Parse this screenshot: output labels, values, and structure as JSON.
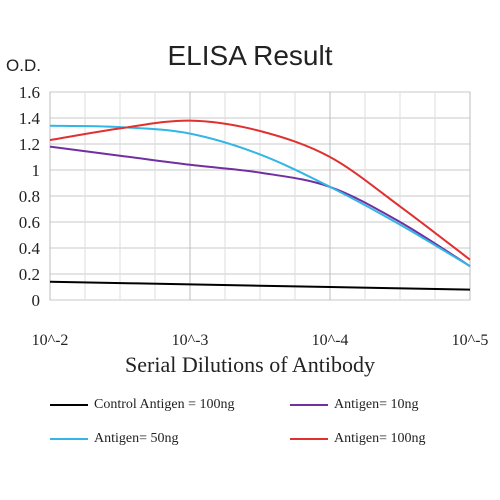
{
  "chart_data": {
    "type": "line",
    "title": "ELISA Result",
    "ylabel": "O.D.",
    "xlabel": "Serial Dilutions of Antibody",
    "x_ticks": [
      "10^-2",
      "10^-3",
      "10^-4",
      "10^-5"
    ],
    "y_ticks": [
      "0",
      "0.2",
      "0.4",
      "0.6",
      "0.8",
      "1",
      "1.2",
      "1.4",
      "1.6"
    ],
    "ylim": [
      0,
      1.6
    ],
    "xlim": [
      0,
      3
    ],
    "x_scale": "log (dilution exponent)",
    "grid": true,
    "legend_position": "bottom",
    "series": [
      {
        "name": "Control Antigen = 100ng",
        "color": "#000000",
        "points": [
          [
            0,
            0.14
          ],
          [
            1,
            0.12
          ],
          [
            2,
            0.1
          ],
          [
            3,
            0.08
          ]
        ]
      },
      {
        "name": "Antigen= 10ng",
        "color": "#7030a0",
        "points": [
          [
            0,
            1.18
          ],
          [
            0.5,
            1.11
          ],
          [
            1,
            1.04
          ],
          [
            1.5,
            0.98
          ],
          [
            2,
            0.87
          ],
          [
            2.5,
            0.6
          ],
          [
            3,
            0.26
          ]
        ]
      },
      {
        "name": "Antigen= 50ng",
        "color": "#33b5e5",
        "points": [
          [
            0,
            1.34
          ],
          [
            0.5,
            1.33
          ],
          [
            1,
            1.28
          ],
          [
            1.5,
            1.12
          ],
          [
            2,
            0.87
          ],
          [
            2.5,
            0.58
          ],
          [
            3,
            0.26
          ]
        ]
      },
      {
        "name": "Antigen= 100ng",
        "color": "#e03030",
        "points": [
          [
            0,
            1.23
          ],
          [
            0.5,
            1.32
          ],
          [
            1,
            1.38
          ],
          [
            1.5,
            1.3
          ],
          [
            2,
            1.1
          ],
          [
            2.5,
            0.72
          ],
          [
            3,
            0.31
          ]
        ]
      }
    ]
  }
}
